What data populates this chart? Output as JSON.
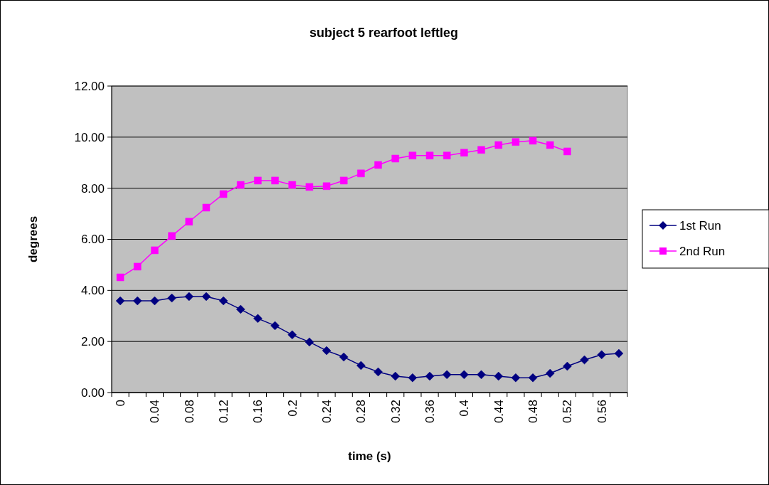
{
  "chart_data": {
    "type": "line",
    "title": "subject 5 rearfoot leftleg",
    "xlabel": "time (s)",
    "ylabel": "degrees",
    "categories": [
      "0",
      null,
      "0.04",
      null,
      "0.08",
      null,
      "0.12",
      null,
      "0.16",
      null,
      "0.2",
      null,
      "0.24",
      null,
      "0.28",
      null,
      "0.32",
      null,
      "0.36",
      null,
      "0.4",
      null,
      "0.44",
      null,
      "0.48",
      null,
      "0.52",
      null,
      "0.56",
      null
    ],
    "series": [
      {
        "name": "1st Run",
        "color": "#000080",
        "marker": "diamond",
        "values": [
          3.59,
          3.59,
          3.59,
          3.7,
          3.76,
          3.76,
          3.59,
          3.26,
          2.9,
          2.62,
          2.26,
          1.98,
          1.64,
          1.39,
          1.06,
          0.81,
          0.64,
          0.58,
          0.64,
          0.7,
          0.7,
          0.7,
          0.64,
          0.58,
          0.58,
          0.75,
          1.03,
          1.28,
          1.48,
          1.53
        ]
      },
      {
        "name": "2nd Run",
        "color": "#ff00ff",
        "marker": "square",
        "values": [
          4.51,
          4.93,
          5.57,
          6.13,
          6.69,
          7.24,
          7.77,
          8.13,
          8.3,
          8.3,
          8.13,
          8.05,
          8.08,
          8.3,
          8.58,
          8.91,
          9.16,
          9.28,
          9.28,
          9.28,
          9.39,
          9.5,
          9.69,
          9.81,
          9.86,
          9.69,
          9.44,
          null,
          null,
          null
        ]
      }
    ],
    "ylim": [
      0,
      12
    ],
    "yticks": [
      {
        "value": 0,
        "label": "0.00"
      },
      {
        "value": 2,
        "label": "2.00"
      },
      {
        "value": 4,
        "label": "4.00"
      },
      {
        "value": 6,
        "label": "6.00"
      },
      {
        "value": 8,
        "label": "8.00"
      },
      {
        "value": 10,
        "label": "10.00"
      },
      {
        "value": 12,
        "label": "12.00"
      }
    ],
    "grid": "y",
    "legend": "right"
  }
}
